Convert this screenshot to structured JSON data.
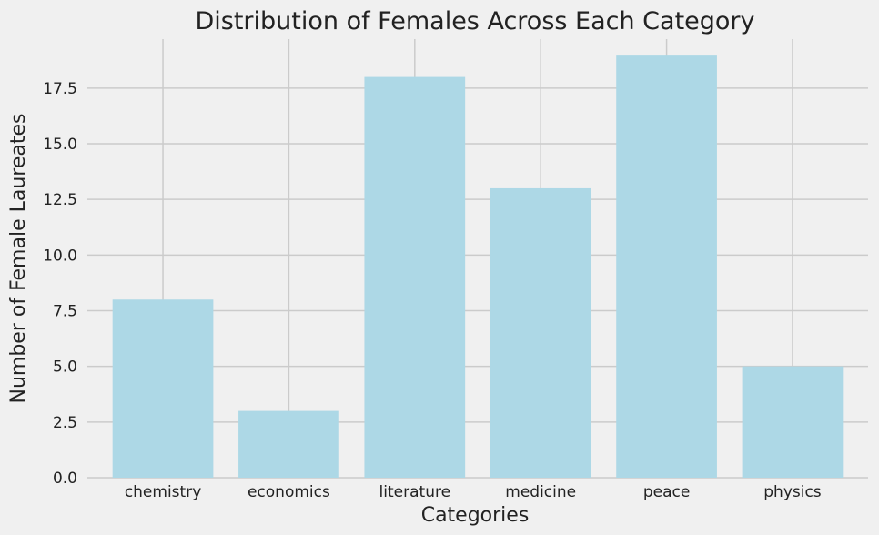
{
  "chart_data": {
    "type": "bar",
    "title": "Distribution of Females Across Each Category",
    "xlabel": "Categories",
    "ylabel": "Number of Female Laureates",
    "categories": [
      "chemistry",
      "economics",
      "literature",
      "medicine",
      "peace",
      "physics"
    ],
    "values": [
      8,
      3,
      18,
      13,
      19,
      5
    ],
    "ylim": [
      0,
      19.7
    ],
    "yticks": [
      0.0,
      2.5,
      5.0,
      7.5,
      10.0,
      12.5,
      15.0,
      17.5
    ],
    "ytick_labels": [
      "0.0",
      "2.5",
      "5.0",
      "7.5",
      "10.0",
      "12.5",
      "15.0",
      "17.5"
    ],
    "grid": true,
    "bar_color": "#add8e6",
    "background_color": "#f0f0f0",
    "grid_color": "#cbcbcb"
  }
}
